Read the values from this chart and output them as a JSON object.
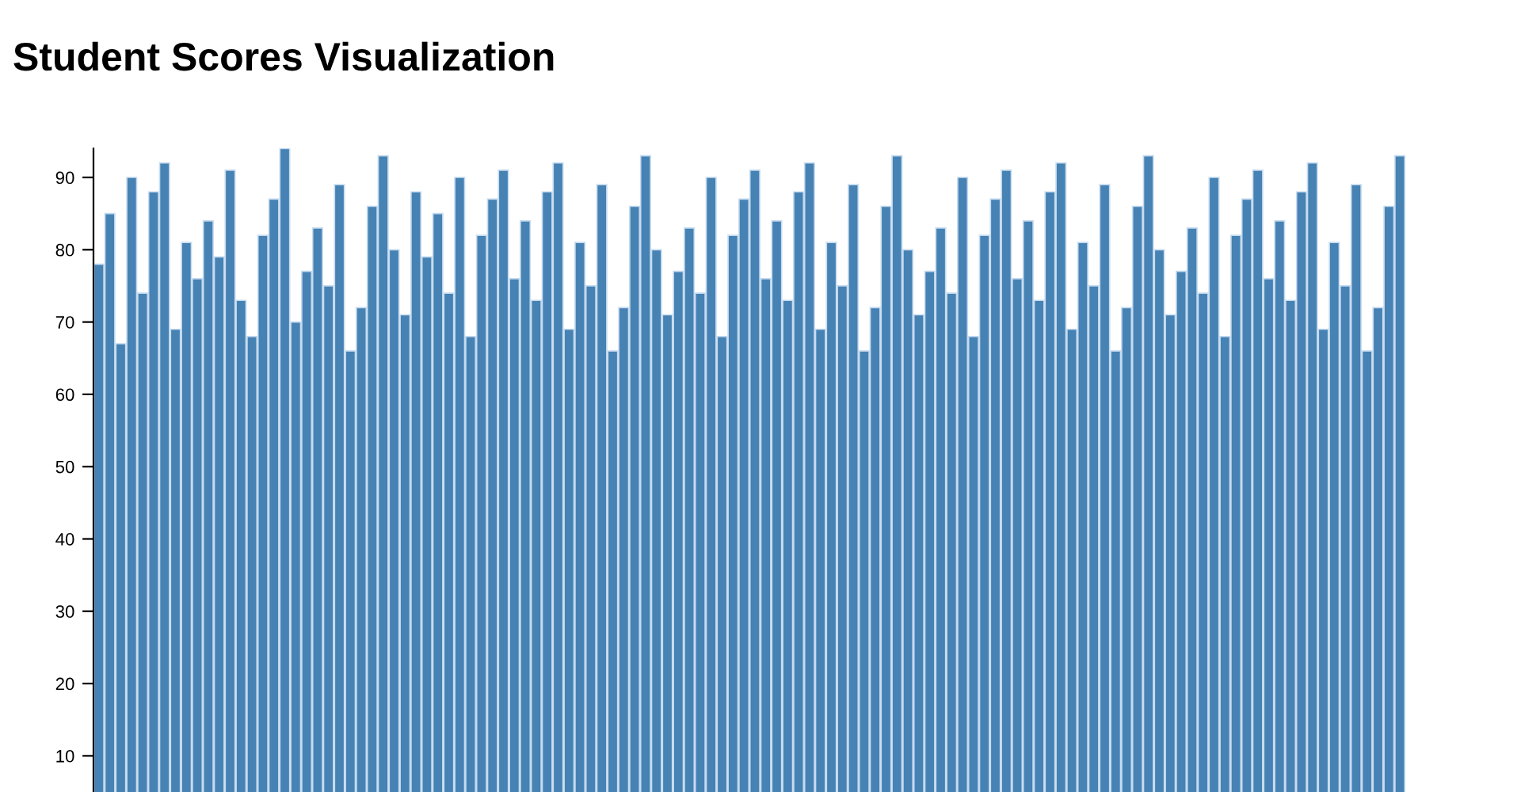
{
  "chart_data": {
    "type": "bar",
    "title": "Student Scores Visualization",
    "categories": [
      null,
      null,
      null,
      null,
      null,
      null,
      null,
      null,
      null,
      null,
      null,
      null,
      null,
      null,
      null,
      null,
      null,
      null,
      null,
      null,
      null,
      null,
      null,
      null,
      null,
      null,
      null,
      null,
      null,
      null,
      null,
      null,
      null,
      null,
      null,
      null,
      null,
      null,
      null,
      null,
      null,
      null,
      null,
      null,
      null,
      null,
      null,
      null,
      null,
      null,
      null,
      null,
      null,
      null,
      null,
      null,
      null,
      null,
      null,
      null,
      null,
      null,
      null,
      null,
      null,
      null,
      null,
      null,
      null,
      null,
      null,
      null,
      null,
      null,
      null,
      null,
      null,
      null,
      null,
      null,
      null,
      null,
      null,
      null,
      null,
      null,
      null,
      null,
      null,
      null,
      null,
      null,
      null,
      null,
      null,
      null,
      null,
      null,
      null,
      null,
      null,
      null,
      null,
      null,
      null,
      null,
      null,
      null,
      null,
      null,
      null,
      null,
      null,
      null,
      null,
      null,
      null,
      null,
      null,
      null
    ],
    "values": [
      78,
      85,
      67,
      90,
      74,
      88,
      92,
      69,
      81,
      76,
      84,
      79,
      91,
      73,
      68,
      82,
      87,
      94,
      70,
      77,
      83,
      75,
      89,
      66,
      72,
      86,
      93,
      80,
      71,
      88,
      79,
      85,
      74,
      90,
      68,
      82,
      87,
      91,
      76,
      84,
      73,
      88,
      92,
      69,
      81,
      75,
      89,
      66,
      72,
      86,
      93,
      80,
      71,
      77,
      83,
      74,
      90,
      68,
      82,
      87,
      91,
      76,
      84,
      73,
      88,
      92,
      69,
      81,
      75,
      89,
      66,
      72,
      86,
      93,
      80,
      71,
      77,
      83,
      74,
      90,
      68,
      82,
      87,
      91,
      76,
      84,
      73,
      88,
      92,
      69,
      81,
      75,
      89,
      66,
      72,
      86,
      93,
      80,
      71,
      77,
      83,
      74,
      90,
      68,
      82,
      87,
      91,
      76,
      84,
      73,
      88,
      92,
      69,
      81,
      75,
      89,
      66,
      72,
      86,
      93
    ],
    "color": "#4682b4",
    "ylim": [
      5,
      94
    ],
    "yticks": [
      10,
      20,
      30,
      40,
      50,
      60,
      70,
      80,
      90
    ],
    "tick_labels": "y",
    "grid": false,
    "legend": false
  }
}
